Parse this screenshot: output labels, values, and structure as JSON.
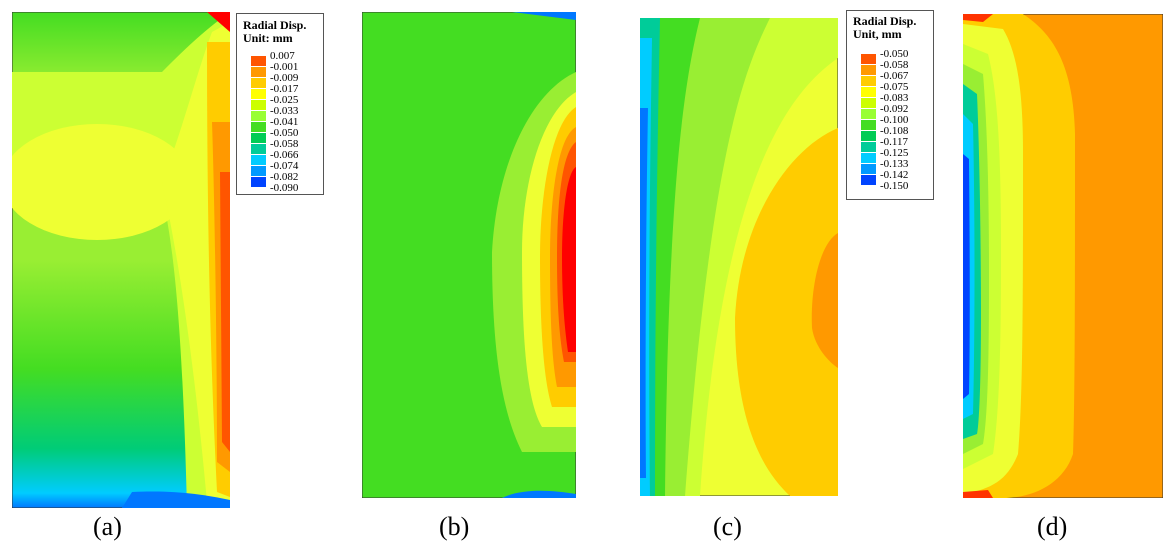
{
  "panels": [
    "(a)",
    "(b)",
    "(c)",
    "(d)"
  ],
  "legend_1": {
    "title": "Radial Disp.",
    "unit": "Unit: mm",
    "values": [
      "0.007",
      "-0.001",
      "-0.009",
      "-0.017",
      "-0.025",
      "-0.033",
      "-0.041",
      "-0.050",
      "-0.058",
      "-0.066",
      "-0.074",
      "-0.082",
      "-0.090"
    ]
  },
  "legend_2": {
    "title": "Radial Disp.",
    "unit": "Unit, mm",
    "values": [
      "-0.050",
      "-0.058",
      "-0.067",
      "-0.075",
      "-0.083",
      "-0.092",
      "-0.100",
      "-0.108",
      "-0.117",
      "-0.125",
      "-0.133",
      "-0.142",
      "-0.150"
    ]
  },
  "palette": [
    "#ff0000",
    "#ff5500",
    "#ff9900",
    "#ffcc00",
    "#ffff00",
    "#ccff00",
    "#99ff33",
    "#44dd22",
    "#00cc55",
    "#00cc99",
    "#00ccff",
    "#0099ff",
    "#0044ff",
    "#0000ff"
  ]
}
